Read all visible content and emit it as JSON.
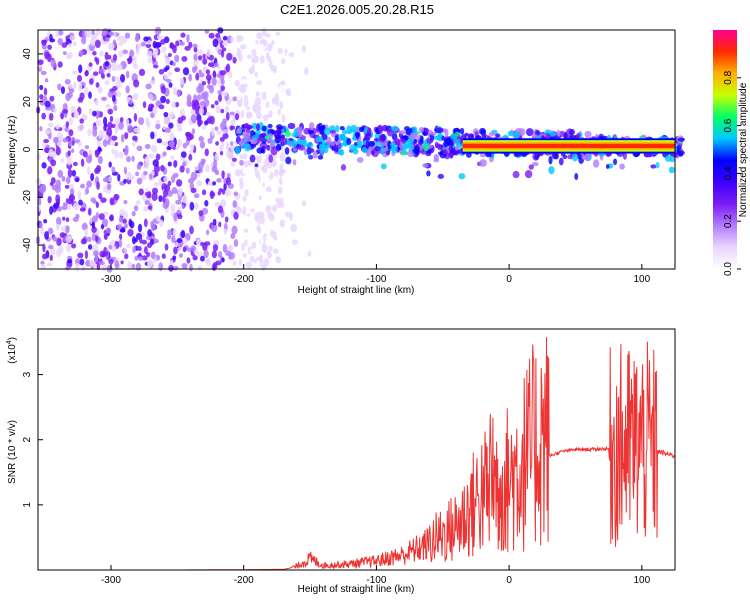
{
  "figure_title": "C2E1.2026.005.20.28.R15",
  "chart_data": [
    {
      "type": "heatmap",
      "name": "spectrogram",
      "xlabel": "Height of straight line (km)",
      "ylabel": "Frequency (Hz)",
      "xlim": [
        -355,
        125
      ],
      "ylim": [
        -50,
        50
      ],
      "xticks": [
        -300,
        -200,
        -100,
        0,
        100
      ],
      "yticks": [
        -40,
        -20,
        0,
        20,
        40
      ],
      "colorbar": {
        "label": "Normalized spectral amplitude",
        "range": [
          0,
          1
        ],
        "ticks": [
          0.0,
          0.2,
          0.4,
          0.6,
          0.8
        ],
        "colors": [
          "#ffffff",
          "#e9d6ff",
          "#b27bff",
          "#7a1cf5",
          "#3d00ff",
          "#0000ff",
          "#00c8ff",
          "#00ff66",
          "#c8ff00",
          "#ffb000",
          "#ff2a00",
          "#ff0090"
        ]
      },
      "regions": [
        {
          "desc": "noise",
          "x": [
            -355,
            -170
          ],
          "y": [
            -50,
            50
          ],
          "level": 0.15
        },
        {
          "desc": "signal band",
          "x": [
            -205,
            -35
          ],
          "y": [
            -6,
            10
          ],
          "level": 0.35
        },
        {
          "desc": "tone",
          "x": [
            -35,
            125
          ],
          "y": [
            0.5,
            2.5
          ],
          "level": 0.95
        }
      ]
    },
    {
      "type": "line",
      "name": "snr",
      "xlabel": "Height of straight line (km)",
      "ylabel": "SNR (10 * v/v)",
      "yscale_label": "(x10",
      "yscale_exp": "4",
      "yscale_close": ")",
      "xlim": [
        -355,
        125
      ],
      "ylim": [
        0,
        3.7
      ],
      "xticks": [
        -300,
        -200,
        -100,
        0,
        100
      ],
      "yticks": [
        1,
        2,
        3
      ],
      "color": "#ee3333",
      "series": [
        {
          "x": [
            -355,
            -250,
            -200,
            -170,
            -160,
            -150,
            -140,
            -120,
            -100,
            -80,
            -60,
            -40,
            -30,
            -20,
            -10,
            0,
            10,
            20,
            30,
            40,
            50,
            60,
            70,
            75,
            80,
            90,
            100,
            105,
            110,
            115,
            125
          ],
          "y": [
            0.0,
            0.0,
            0.005,
            0.01,
            0.05,
            0.15,
            0.06,
            0.08,
            0.12,
            0.2,
            0.35,
            0.55,
            0.75,
            1.0,
            1.1,
            1.15,
            1.35,
            1.6,
            1.75,
            1.82,
            1.85,
            1.85,
            1.86,
            1.86,
            1.9,
            1.9,
            1.95,
            1.9,
            1.85,
            1.8,
            1.75
          ]
        }
      ]
    }
  ]
}
